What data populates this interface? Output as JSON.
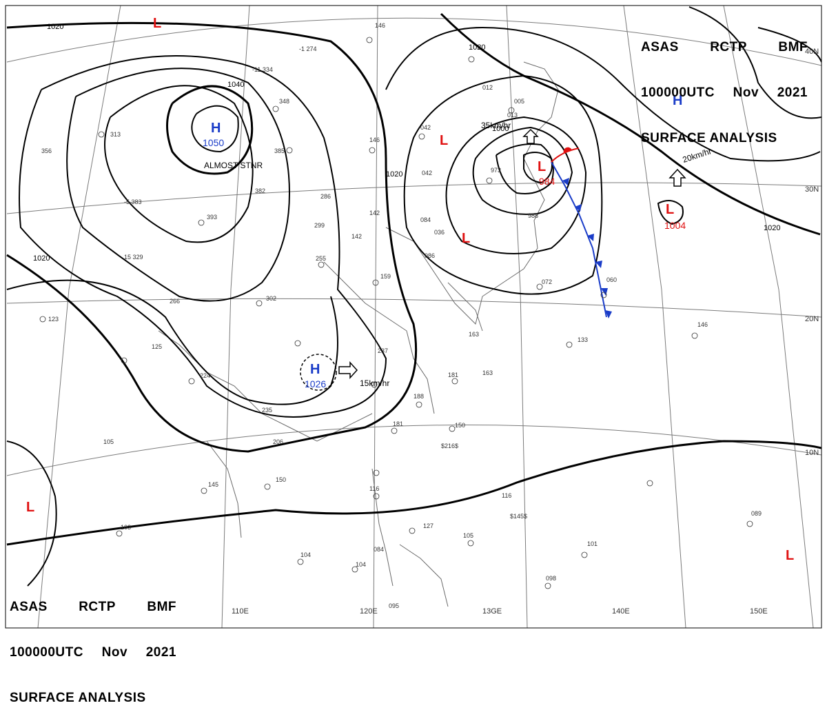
{
  "header": {
    "agency": "ASAS",
    "center": "RCTP",
    "issuer": "BMF",
    "time": "100000UTC",
    "month": "Nov",
    "year": "2021",
    "title": "SURFACE ANALYSIS"
  },
  "longitudes": [
    "110E",
    "120E",
    "13GE",
    "140E",
    "150E"
  ],
  "latitudes": [
    "40N",
    "30N",
    "20N",
    "10N"
  ],
  "isobar_labels": [
    "1020",
    "1020",
    "1020",
    "1040",
    "1020",
    "1000",
    "1020"
  ],
  "pressure_systems": [
    {
      "type": "H",
      "value": "1050",
      "note": "ALMOST STNR",
      "color": "#1a3cc8"
    },
    {
      "type": "H",
      "value": "1026",
      "movement": "15km/hr",
      "color": "#1a3cc8"
    },
    {
      "type": "H",
      "value": "",
      "color": "#1a3cc8"
    },
    {
      "type": "L",
      "value": "984",
      "movement": "35km/hr",
      "color": "#e01010"
    },
    {
      "type": "L",
      "value": "1004",
      "movement": "20km/hr",
      "color": "#e01010"
    },
    {
      "type": "L",
      "value": "",
      "color": "#e01010"
    }
  ],
  "colors": {
    "high": "#1a3cc8",
    "low": "#e01010",
    "cold_front": "#1a3cc8",
    "warm_front": "#e01010"
  }
}
